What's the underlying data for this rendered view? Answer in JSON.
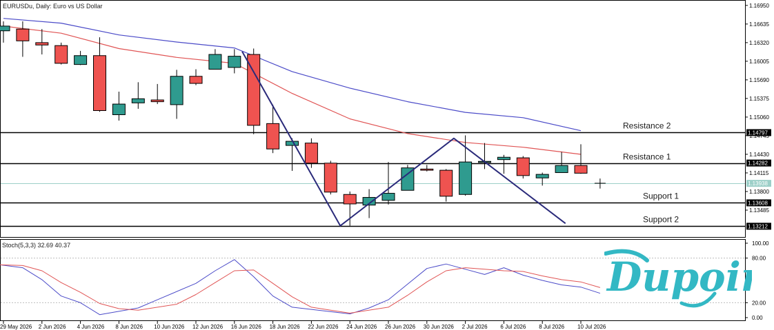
{
  "window_title": "EURUSDu, Daily:  Euro vs US Dollar",
  "stoch_title": "Stoch(5,3,3) 32.69 40.37",
  "brand": {
    "name": "Dupoin",
    "color": "#33b8c4"
  },
  "colors": {
    "bull": "#2f9b8f",
    "bear": "#ef5350",
    "ma_slow": "#4a4ac8",
    "ma_fast": "#e05353",
    "pattern": "#2a2a7a",
    "level": "#000000",
    "bid": "#9ccfc8",
    "stoch_k": "#4a4ac8",
    "stoch_d": "#e05353"
  },
  "chart_data": {
    "type": "candlestick",
    "title": "EURUSDu, Daily:  Euro vs US Dollar",
    "price_ylim": [
      1.13065,
      1.16995
    ],
    "price_ticks": [
      "1.16950",
      "1.16635",
      "1.16320",
      "1.16005",
      "1.15690",
      "1.15375",
      "1.15060",
      "1.14745",
      "1.14430",
      "1.14115",
      "1.13800",
      "1.13485"
    ],
    "x_labels": [
      {
        "i": 0,
        "label": "29 May 2026"
      },
      {
        "i": 2,
        "label": "2 Jun 2026"
      },
      {
        "i": 4,
        "label": "4 Jun 2026"
      },
      {
        "i": 6,
        "label": "8 Jun 2026"
      },
      {
        "i": 8,
        "label": "10 Jun 2026"
      },
      {
        "i": 10,
        "label": "12 Jun 2026"
      },
      {
        "i": 12,
        "label": "16 Jun 2026"
      },
      {
        "i": 14,
        "label": "18 Jun 2026"
      },
      {
        "i": 16,
        "label": "22 Jun 2026"
      },
      {
        "i": 18,
        "label": "24 Jun 2026"
      },
      {
        "i": 20,
        "label": "26 Jun 2026"
      },
      {
        "i": 22,
        "label": "30 Jun 2026"
      },
      {
        "i": 24,
        "label": "2 Jul 2026"
      },
      {
        "i": 26,
        "label": "6 Jul 2026"
      },
      {
        "i": 28,
        "label": "8 Jul 2026"
      },
      {
        "i": 30,
        "label": "10 Jul 2026"
      }
    ],
    "candles": [
      {
        "o": 1.1652,
        "h": 1.1668,
        "l": 1.1632,
        "c": 1.166
      },
      {
        "o": 1.1655,
        "h": 1.1668,
        "l": 1.1608,
        "c": 1.1635
      },
      {
        "o": 1.1632,
        "h": 1.1655,
        "l": 1.1612,
        "c": 1.1628
      },
      {
        "o": 1.1627,
        "h": 1.1632,
        "l": 1.1595,
        "c": 1.1597
      },
      {
        "o": 1.1595,
        "h": 1.1618,
        "l": 1.1594,
        "c": 1.161
      },
      {
        "o": 1.161,
        "h": 1.1641,
        "l": 1.1515,
        "c": 1.1517
      },
      {
        "o": 1.151,
        "h": 1.1549,
        "l": 1.15,
        "c": 1.1528
      },
      {
        "o": 1.153,
        "h": 1.1565,
        "l": 1.152,
        "c": 1.1537
      },
      {
        "o": 1.1535,
        "h": 1.1562,
        "l": 1.1528,
        "c": 1.1532
      },
      {
        "o": 1.1527,
        "h": 1.1586,
        "l": 1.1503,
        "c": 1.1575
      },
      {
        "o": 1.1575,
        "h": 1.1587,
        "l": 1.156,
        "c": 1.1563
      },
      {
        "o": 1.1587,
        "h": 1.1621,
        "l": 1.1587,
        "c": 1.1612
      },
      {
        "o": 1.159,
        "h": 1.1621,
        "l": 1.158,
        "c": 1.1609
      },
      {
        "o": 1.1612,
        "h": 1.1622,
        "l": 1.1477,
        "c": 1.1492
      },
      {
        "o": 1.1495,
        "h": 1.1527,
        "l": 1.1445,
        "c": 1.1452
      },
      {
        "o": 1.1458,
        "h": 1.147,
        "l": 1.1415,
        "c": 1.1465
      },
      {
        "o": 1.1462,
        "h": 1.147,
        "l": 1.142,
        "c": 1.1428
      },
      {
        "o": 1.1428,
        "h": 1.1432,
        "l": 1.1375,
        "c": 1.1379
      },
      {
        "o": 1.1375,
        "h": 1.138,
        "l": 1.1322,
        "c": 1.1359
      },
      {
        "o": 1.1357,
        "h": 1.1384,
        "l": 1.1335,
        "c": 1.137
      },
      {
        "o": 1.1365,
        "h": 1.143,
        "l": 1.1358,
        "c": 1.1377
      },
      {
        "o": 1.1382,
        "h": 1.1425,
        "l": 1.1382,
        "c": 1.142
      },
      {
        "o": 1.1418,
        "h": 1.1425,
        "l": 1.1414,
        "c": 1.1416
      },
      {
        "o": 1.1416,
        "h": 1.1418,
        "l": 1.1363,
        "c": 1.1372
      },
      {
        "o": 1.1375,
        "h": 1.1475,
        "l": 1.1373,
        "c": 1.143
      },
      {
        "o": 1.143,
        "h": 1.1462,
        "l": 1.1418,
        "c": 1.1431
      },
      {
        "o": 1.1434,
        "h": 1.1442,
        "l": 1.141,
        "c": 1.1438
      },
      {
        "o": 1.1437,
        "h": 1.144,
        "l": 1.1402,
        "c": 1.1407
      },
      {
        "o": 1.1403,
        "h": 1.1412,
        "l": 1.139,
        "c": 1.1409
      },
      {
        "o": 1.1412,
        "h": 1.1447,
        "l": 1.1412,
        "c": 1.1424
      },
      {
        "o": 1.1424,
        "h": 1.146,
        "l": 1.141,
        "c": 1.1411
      },
      {
        "o": 1.1394,
        "h": 1.1402,
        "l": 1.1385,
        "c": 1.1394
      }
    ],
    "ma_slow": [
      {
        "i": 0,
        "v": 1.1673
      },
      {
        "i": 3,
        "v": 1.1665
      },
      {
        "i": 6,
        "v": 1.1645
      },
      {
        "i": 9,
        "v": 1.1633
      },
      {
        "i": 12,
        "v": 1.1623
      },
      {
        "i": 15,
        "v": 1.1583
      },
      {
        "i": 18,
        "v": 1.1555
      },
      {
        "i": 21,
        "v": 1.1532
      },
      {
        "i": 24,
        "v": 1.1514
      },
      {
        "i": 27,
        "v": 1.1505
      },
      {
        "i": 30,
        "v": 1.1483
      }
    ],
    "ma_fast": [
      {
        "i": 0,
        "v": 1.166
      },
      {
        "i": 3,
        "v": 1.1648
      },
      {
        "i": 6,
        "v": 1.1622
      },
      {
        "i": 9,
        "v": 1.1607
      },
      {
        "i": 12,
        "v": 1.1597
      },
      {
        "i": 15,
        "v": 1.1546
      },
      {
        "i": 18,
        "v": 1.1503
      },
      {
        "i": 21,
        "v": 1.1478
      },
      {
        "i": 24,
        "v": 1.1463
      },
      {
        "i": 27,
        "v": 1.1455
      },
      {
        "i": 30,
        "v": 1.1443
      }
    ],
    "pattern_line": [
      {
        "i": 12.4,
        "v": 1.1617
      },
      {
        "i": 17.5,
        "v": 1.1322
      },
      {
        "i": 23.4,
        "v": 1.147
      },
      {
        "i": 29.2,
        "v": 1.1326
      }
    ],
    "levels": [
      {
        "name": "Resistance 2",
        "value": 1.14797,
        "label": "1.14797"
      },
      {
        "name": "Resistance 1",
        "value": 1.14282,
        "label": "1.14282"
      },
      {
        "name": "Support 1",
        "value": 1.13608,
        "label": "1.13608"
      },
      {
        "name": "Support 2",
        "value": 1.13212,
        "label": "1.13212"
      }
    ],
    "bid": {
      "value": 1.13938,
      "label": "1.13938"
    },
    "stoch": {
      "name": "Stoch(5,3,3)",
      "k_value": 32.69,
      "d_value": 40.37,
      "ylim": [
        0,
        100
      ],
      "ticks": [
        "100.00",
        "80.00",
        "20.00",
        "0.00"
      ],
      "levels": [
        80,
        20
      ],
      "k": [
        {
          "i": -0.2,
          "v": 71
        },
        {
          "i": 1,
          "v": 67
        },
        {
          "i": 2,
          "v": 51
        },
        {
          "i": 3,
          "v": 29
        },
        {
          "i": 4,
          "v": 20
        },
        {
          "i": 5,
          "v": 4
        },
        {
          "i": 7,
          "v": 13
        },
        {
          "i": 8,
          "v": 24
        },
        {
          "i": 10,
          "v": 46
        },
        {
          "i": 11,
          "v": 63
        },
        {
          "i": 12,
          "v": 78
        },
        {
          "i": 13,
          "v": 55
        },
        {
          "i": 14,
          "v": 29
        },
        {
          "i": 15,
          "v": 14
        },
        {
          "i": 16,
          "v": 11
        },
        {
          "i": 17,
          "v": 8
        },
        {
          "i": 18,
          "v": 5
        },
        {
          "i": 19,
          "v": 13
        },
        {
          "i": 20,
          "v": 24
        },
        {
          "i": 21,
          "v": 45
        },
        {
          "i": 22,
          "v": 66
        },
        {
          "i": 23,
          "v": 72
        },
        {
          "i": 24,
          "v": 65
        },
        {
          "i": 25,
          "v": 58
        },
        {
          "i": 26,
          "v": 67
        },
        {
          "i": 27,
          "v": 57
        },
        {
          "i": 28,
          "v": 50
        },
        {
          "i": 29,
          "v": 44
        },
        {
          "i": 30,
          "v": 41
        },
        {
          "i": 31,
          "v": 32.69
        }
      ],
      "d": [
        {
          "i": -0.2,
          "v": 71
        },
        {
          "i": 1,
          "v": 70
        },
        {
          "i": 2,
          "v": 63
        },
        {
          "i": 3,
          "v": 47
        },
        {
          "i": 4,
          "v": 34
        },
        {
          "i": 5,
          "v": 19
        },
        {
          "i": 6,
          "v": 12
        },
        {
          "i": 7,
          "v": 10
        },
        {
          "i": 9,
          "v": 18
        },
        {
          "i": 10,
          "v": 31
        },
        {
          "i": 11,
          "v": 47
        },
        {
          "i": 12,
          "v": 63
        },
        {
          "i": 13,
          "v": 64
        },
        {
          "i": 14,
          "v": 46
        },
        {
          "i": 15,
          "v": 28
        },
        {
          "i": 16,
          "v": 14
        },
        {
          "i": 17,
          "v": 10
        },
        {
          "i": 18,
          "v": 6
        },
        {
          "i": 20,
          "v": 14
        },
        {
          "i": 21,
          "v": 30
        },
        {
          "i": 22,
          "v": 48
        },
        {
          "i": 23,
          "v": 63
        },
        {
          "i": 24,
          "v": 67
        },
        {
          "i": 25,
          "v": 65
        },
        {
          "i": 26,
          "v": 63
        },
        {
          "i": 27,
          "v": 62
        },
        {
          "i": 28,
          "v": 56
        },
        {
          "i": 29,
          "v": 51
        },
        {
          "i": 30,
          "v": 48
        },
        {
          "i": 31,
          "v": 40.37
        }
      ]
    }
  }
}
